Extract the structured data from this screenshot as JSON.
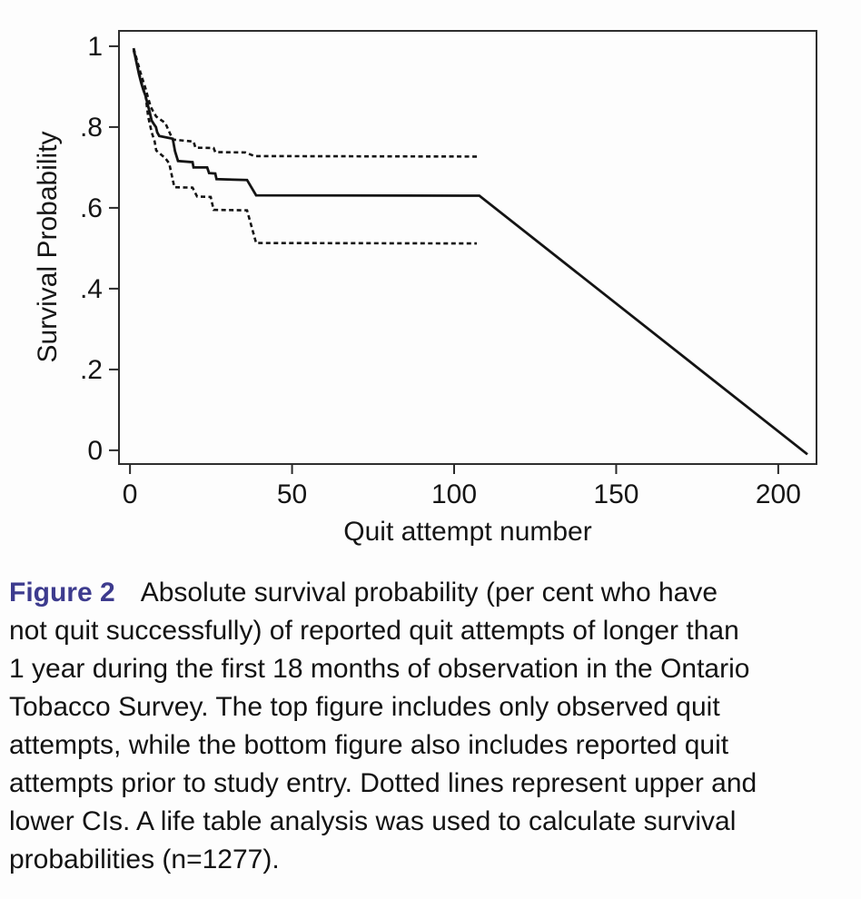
{
  "figure": {
    "label": "Figure 2",
    "label_color": "#3d3b8e",
    "caption_text": "Absolute survival probability (per cent who have\nnot quit successfully) of reported quit attempts of longer than\n1 year during the first 18 months of observation in the Ontario\nTobacco Survey. The top figure includes only observed quit\nattempts, while the bottom figure also includes reported quit\nattempts prior to study entry. Dotted lines represent upper and\nlower CIs. A life table analysis was used to calculate survival\nprobabilities (n=1277)."
  },
  "chart_data": {
    "type": "line",
    "title": "",
    "xlabel": "Quit attempt number",
    "ylabel": "Survival Probability",
    "xlim": [
      -3.4,
      211.8
    ],
    "ylim": [
      -0.034,
      1.038
    ],
    "x_ticks": [
      {
        "value": 0,
        "label": "0"
      },
      {
        "value": 50,
        "label": "50"
      },
      {
        "value": 100,
        "label": "100"
      },
      {
        "value": 150,
        "label": "150"
      },
      {
        "value": 200,
        "label": "200"
      }
    ],
    "y_ticks": [
      {
        "value": 0,
        "label": "0"
      },
      {
        "value": 0.2,
        "label": ".2"
      },
      {
        "value": 0.4,
        "label": ".4"
      },
      {
        "value": 0.6,
        "label": ".6"
      },
      {
        "value": 0.8,
        "label": ".8"
      },
      {
        "value": 1,
        "label": "1"
      }
    ],
    "grid": false,
    "legend_position": "none",
    "line_color": "#141414",
    "series": [
      {
        "name": "Survival probability estimate",
        "style": "solid",
        "points": [
          [
            1.1,
            0.995
          ],
          [
            1.6,
            0.975
          ],
          [
            2.2,
            0.952
          ],
          [
            2.8,
            0.93
          ],
          [
            3.5,
            0.908
          ],
          [
            4.2,
            0.89
          ],
          [
            4.8,
            0.877
          ],
          [
            5.4,
            0.857
          ],
          [
            6.0,
            0.84
          ],
          [
            6.7,
            0.816
          ],
          [
            7.3,
            0.808
          ],
          [
            8.0,
            0.8
          ],
          [
            8.4,
            0.787
          ],
          [
            9.0,
            0.778
          ],
          [
            13.2,
            0.771
          ],
          [
            13.9,
            0.74
          ],
          [
            14.8,
            0.716
          ],
          [
            19.3,
            0.713
          ],
          [
            19.6,
            0.7
          ],
          [
            23.8,
            0.7
          ],
          [
            24.4,
            0.686
          ],
          [
            26.3,
            0.685
          ],
          [
            26.7,
            0.671
          ],
          [
            36.1,
            0.669
          ],
          [
            38.9,
            0.631
          ],
          [
            107.8,
            0.63
          ],
          [
            209,
            -0.01
          ]
        ]
      },
      {
        "name": "Upper CI",
        "style": "dashed",
        "points": [
          [
            1.1,
            0.995
          ],
          [
            1.8,
            0.975
          ],
          [
            2.5,
            0.955
          ],
          [
            3.2,
            0.935
          ],
          [
            4.0,
            0.915
          ],
          [
            4.8,
            0.895
          ],
          [
            5.6,
            0.872
          ],
          [
            6.4,
            0.85
          ],
          [
            7.2,
            0.838
          ],
          [
            8.1,
            0.826
          ],
          [
            10.0,
            0.815
          ],
          [
            10.9,
            0.81
          ],
          [
            13.2,
            0.769
          ],
          [
            19.6,
            0.764
          ],
          [
            20.2,
            0.749
          ],
          [
            25.8,
            0.748
          ],
          [
            26.3,
            0.738
          ],
          [
            35.6,
            0.737
          ],
          [
            38.4,
            0.728
          ],
          [
            107.3,
            0.727
          ]
        ]
      },
      {
        "name": "Lower CI",
        "style": "dashed",
        "points": [
          [
            1.1,
            0.99
          ],
          [
            1.8,
            0.968
          ],
          [
            2.5,
            0.944
          ],
          [
            3.2,
            0.92
          ],
          [
            4.0,
            0.898
          ],
          [
            4.8,
            0.877
          ],
          [
            5.6,
            0.826
          ],
          [
            6.7,
            0.787
          ],
          [
            7.6,
            0.764
          ],
          [
            8.1,
            0.742
          ],
          [
            10.9,
            0.723
          ],
          [
            12.1,
            0.71
          ],
          [
            13.7,
            0.651
          ],
          [
            19.3,
            0.65
          ],
          [
            20.7,
            0.628
          ],
          [
            24.9,
            0.627
          ],
          [
            25.8,
            0.595
          ],
          [
            36.1,
            0.594
          ],
          [
            38.9,
            0.513
          ],
          [
            107.0,
            0.512
          ]
        ]
      }
    ]
  }
}
